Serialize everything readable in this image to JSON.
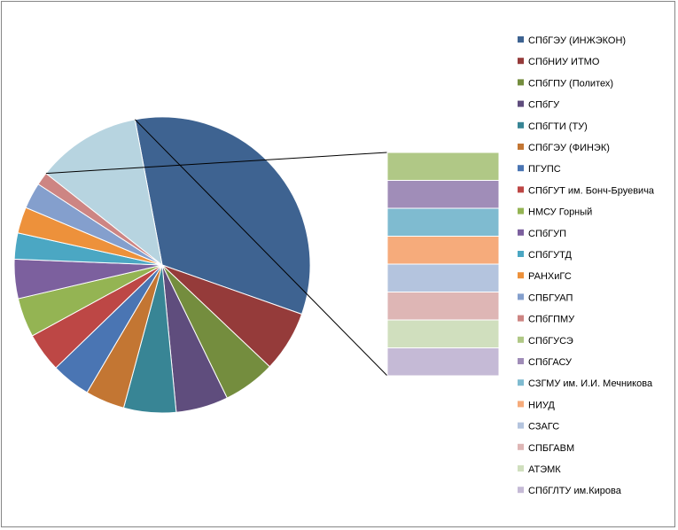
{
  "chart_data": {
    "type": "pie",
    "subtype": "bar-of-pie",
    "title": "",
    "legend_position": "right",
    "categories": [
      "СПбГЭУ (ИНЖЭКОН)",
      "СПбНИУ ИТМО",
      "СПбГПУ (Политех)",
      "СПбГУ",
      "СПбГТИ (ТУ)",
      "СПбГЭУ (ФИНЭК)",
      "ПГУПС",
      "СПбГУТ им. Бонч-Бруевича",
      "НМСУ Горный",
      "СПбГУП",
      "СПбГУТД",
      "РАНХиГС",
      "СПБГУАП",
      "СПбГПМУ",
      "СПбГУСЭ",
      "СПбГАСУ",
      "СЗГМУ им. И.И.  Мечникова",
      "НИУД",
      "СЗАГС",
      "СПБГАВМ",
      "АТЭМК",
      "СПбГЛТУ им.Кирова"
    ],
    "values": [
      35,
      7,
      6,
      6,
      6,
      4.5,
      4.5,
      4.5,
      4.5,
      4.5,
      3,
      3,
      3,
      1.5,
      1.5,
      1.5,
      1.5,
      1.5,
      1.5,
      1.5,
      1.5,
      1.5
    ],
    "colors": [
      "#3e6391",
      "#953b3a",
      "#748d3e",
      "#5f4d7d",
      "#388595",
      "#c37633",
      "#4a75b3",
      "#bd4745",
      "#94b453",
      "#7c609e",
      "#4ba7c3",
      "#ed913b",
      "#849fcd",
      "#cd8583",
      "#b0c886",
      "#a08db8",
      "#7fbbd0",
      "#f6ab7b",
      "#b4c4de",
      "#deb6b5",
      "#d0dfbe",
      "#c5bad6"
    ],
    "secondary_categories": [
      "СПбГУСЭ",
      "СПбГАСУ",
      "СЗГМУ им. И.И.  Мечникова",
      "НИУД",
      "СЗАГС",
      "СПБГАВМ",
      "АТЭМК",
      "СПбГЛТУ им.Кирова"
    ],
    "other_slice_color": "#b7d4e0"
  }
}
